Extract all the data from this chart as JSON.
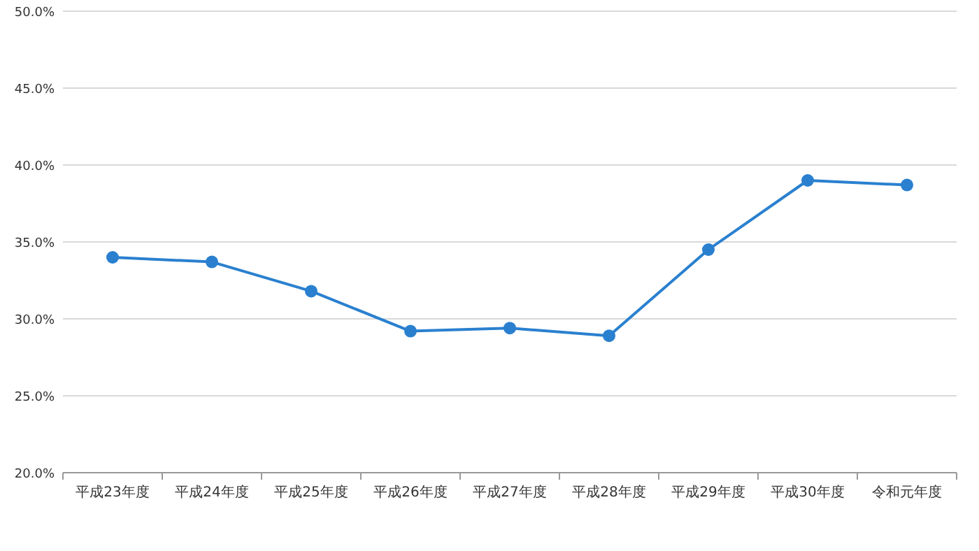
{
  "chart_data": {
    "type": "line",
    "categories": [
      "平成23年度",
      "平成24年度",
      "平成25年度",
      "平成26年度",
      "平成27年度",
      "平成28年度",
      "平成29年度",
      "平成30年度",
      "令和元年度"
    ],
    "series": [
      {
        "color": "#2a80cf",
        "values": [
          34.0,
          33.7,
          31.8,
          29.2,
          29.4,
          28.9,
          34.5,
          39.0,
          38.7
        ]
      }
    ],
    "ylim": [
      20,
      50
    ],
    "yticks": [
      {
        "value": 20,
        "label": "20.0%"
      },
      {
        "value": 25,
        "label": "25.0%"
      },
      {
        "value": 30,
        "label": "30.0%"
      },
      {
        "value": 35,
        "label": "35.0%"
      },
      {
        "value": 40,
        "label": "40.0%"
      },
      {
        "value": 45,
        "label": "45.0%"
      },
      {
        "value": 50,
        "label": "50.0%"
      }
    ],
    "grid": "y",
    "marker": "circle",
    "line_style": "solid"
  }
}
